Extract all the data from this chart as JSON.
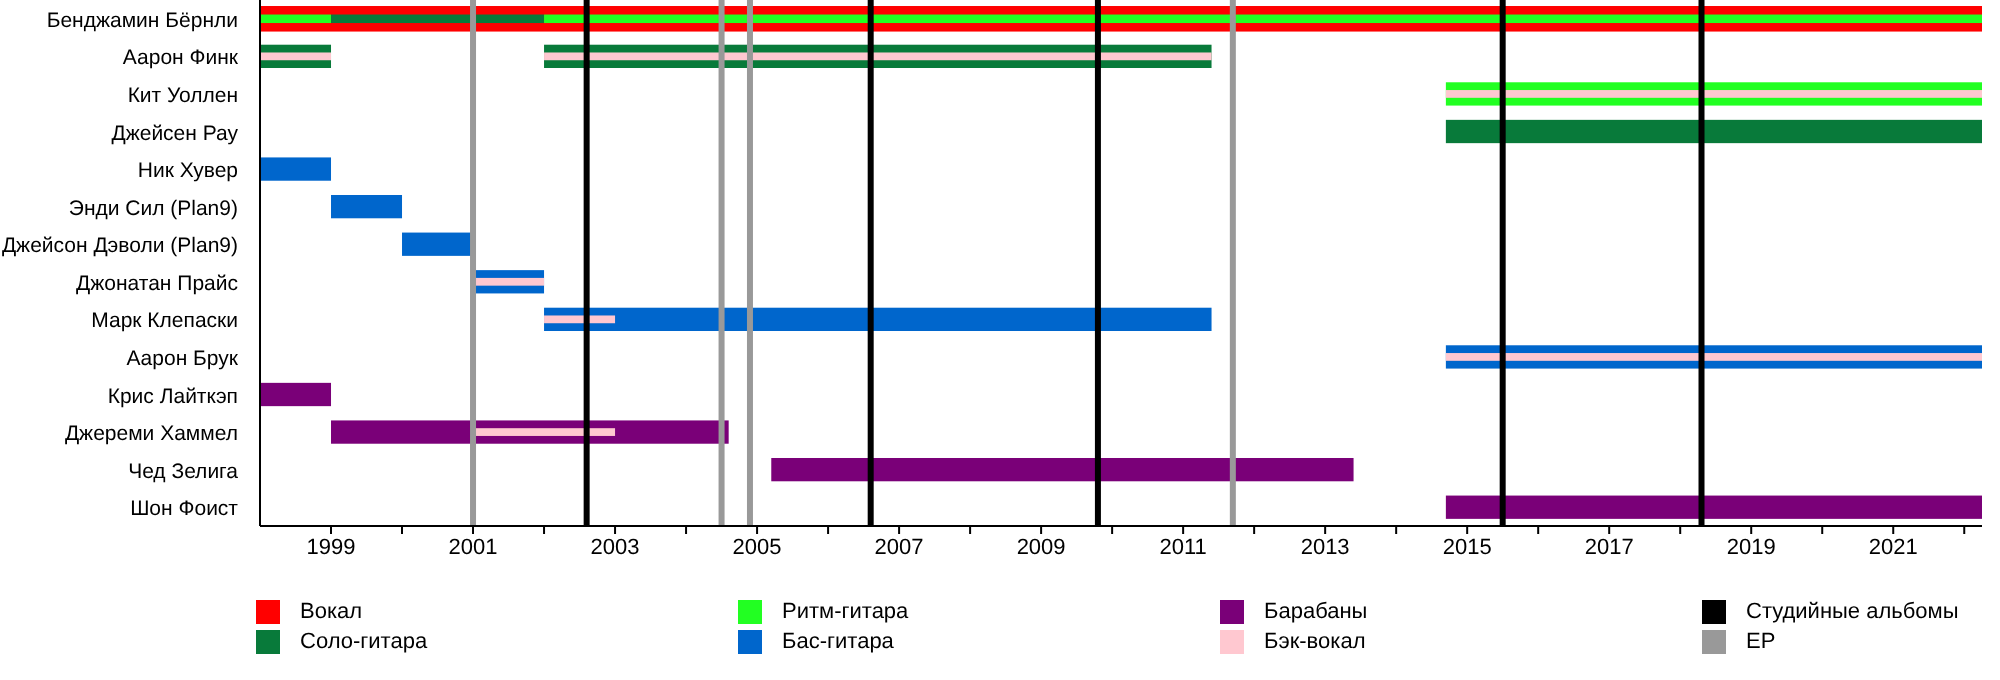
{
  "chart_data": {
    "type": "bar",
    "orientation": "horizontal",
    "legend": "bottom",
    "grid": false,
    "categories": [
      "Бенджамин Бёрнли",
      "Аарон Финк",
      "Кит Уоллен",
      "Джейсен Рау",
      "Ник Хувер",
      "Энди Сил (Plan9)",
      "Джейсон Дэволи (Plan9)",
      "Джонатан Прайс",
      "Марк Клепаски",
      "Аарон Брук",
      "Крис Лайткэп",
      "Джереми Хаммел",
      "Чед Зелига",
      "Шон Фоист"
    ],
    "xlim": [
      1998,
      2022.25
    ],
    "xticks": [
      1999,
      {
        "value": 2000,
        "label": null
      },
      2001,
      {
        "value": 2002,
        "label": null
      },
      2003,
      {
        "value": 2004,
        "label": null
      },
      2005,
      {
        "value": 2006,
        "label": null
      },
      2007,
      {
        "value": 2008,
        "label": null
      },
      2009,
      {
        "value": 2010,
        "label": null
      },
      2011,
      {
        "value": 2012,
        "label": null
      },
      2013,
      {
        "value": 2014,
        "label": null
      },
      2015,
      {
        "value": 2016,
        "label": null
      },
      2017,
      {
        "value": 2018,
        "label": null
      },
      2019,
      {
        "value": 2020,
        "label": null
      },
      2021,
      {
        "value": 2022,
        "label": null
      }
    ],
    "series": [
      {
        "name": "Вокал",
        "color": "#ff0000",
        "base": [
          1998,
          null,
          null,
          null,
          null,
          null,
          null,
          null,
          null,
          null,
          null,
          null,
          null,
          null
        ],
        "values": [
          24.25,
          null,
          null,
          null,
          null,
          null,
          null,
          null,
          null,
          null,
          null,
          null,
          null,
          null
        ]
      },
      {
        "name": "Соло-гитара",
        "color": "#087a3a",
        "base": [
          1999,
          1998,
          null,
          2014.7,
          null,
          null,
          null,
          null,
          null,
          null,
          null,
          null,
          null,
          null
        ],
        "values": [
          3,
          1,
          null,
          7.55,
          null,
          null,
          null,
          null,
          null,
          null,
          null,
          null,
          null,
          null
        ]
      },
      {
        "color": "#087a3a",
        "base": [
          null,
          2002,
          null,
          null,
          null,
          null,
          null,
          null,
          null,
          null,
          null,
          null,
          null,
          null
        ],
        "values": [
          null,
          9.4,
          null,
          null,
          null,
          null,
          null,
          null,
          null,
          null,
          null,
          null,
          null,
          null
        ]
      },
      {
        "name": "Ритм-гитара",
        "color": "#22ff22",
        "base": [
          1998,
          null,
          2014.7,
          null,
          null,
          null,
          null,
          null,
          null,
          null,
          null,
          null,
          null,
          null
        ],
        "values": [
          1,
          null,
          7.55,
          null,
          null,
          null,
          null,
          null,
          null,
          null,
          null,
          null,
          null,
          null
        ]
      },
      {
        "color": "#22ff22",
        "base": [
          2002,
          null,
          null,
          null,
          null,
          null,
          null,
          null,
          null,
          null,
          null,
          null,
          null,
          null
        ],
        "values": [
          20.25,
          null,
          null,
          null,
          null,
          null,
          null,
          null,
          null,
          null,
          null,
          null,
          null,
          null
        ]
      },
      {
        "name": "Бас-гитара",
        "color": "#0066cc",
        "base": [
          null,
          null,
          null,
          null,
          1998,
          1999,
          2000,
          2001,
          2002,
          2014.7,
          null,
          null,
          null,
          null
        ],
        "values": [
          null,
          null,
          null,
          null,
          1,
          1,
          1,
          1,
          9.4,
          7.55,
          null,
          null,
          null,
          null
        ]
      },
      {
        "name": "Барабаны",
        "color": "#7a0078",
        "base": [
          null,
          null,
          null,
          null,
          null,
          null,
          null,
          null,
          null,
          null,
          1998,
          1999,
          2005.2,
          2014.7
        ],
        "values": [
          null,
          null,
          null,
          null,
          null,
          null,
          null,
          null,
          null,
          null,
          1,
          5.6,
          8.2,
          7.55
        ]
      },
      {
        "name": "Бэк-вокал",
        "color": "#ffc8d0",
        "base": [
          null,
          1998,
          2014.7,
          null,
          null,
          null,
          null,
          2001,
          2002,
          2014.7,
          null,
          2001,
          null,
          null
        ],
        "values": [
          null,
          1,
          7.55,
          null,
          null,
          null,
          null,
          1,
          1,
          7.55,
          null,
          2,
          null,
          null
        ]
      },
      {
        "color": "#ffc8d0",
        "base": [
          null,
          2002,
          null,
          null,
          null,
          null,
          null,
          null,
          null,
          null,
          null,
          null,
          null,
          null
        ],
        "values": [
          null,
          9.4,
          null,
          null,
          null,
          null,
          null,
          null,
          null,
          null,
          null,
          null,
          null,
          null
        ]
      }
    ],
    "ref_lines": [
      {
        "axis": "x",
        "value": 2002.6,
        "label": "Студийные альбомы",
        "color": "#000000"
      },
      {
        "axis": "x",
        "value": 2006.6,
        "color": "#000000"
      },
      {
        "axis": "x",
        "value": 2009.8,
        "color": "#000000"
      },
      {
        "axis": "x",
        "value": 2015.5,
        "color": "#000000"
      },
      {
        "axis": "x",
        "value": 2018.3,
        "color": "#000000"
      },
      {
        "axis": "x",
        "value": 2001.0,
        "label": "EP",
        "color": "#999999"
      },
      {
        "axis": "x",
        "value": 2004.5,
        "color": "#999999"
      },
      {
        "axis": "x",
        "value": 2004.9,
        "color": "#999999"
      },
      {
        "axis": "x",
        "value": 2011.7,
        "color": "#999999"
      }
    ]
  }
}
